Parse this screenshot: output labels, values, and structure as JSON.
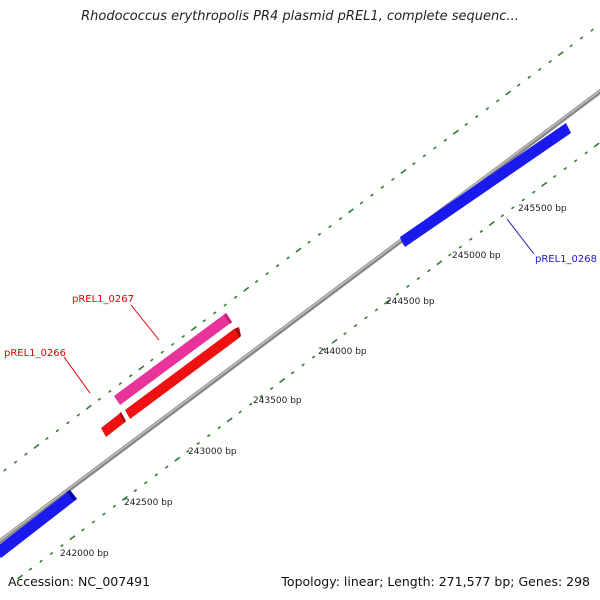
{
  "title": "Rhodococcus erythropolis PR4 plasmid pREL1, complete sequenc...",
  "footer": {
    "accession": "Accession: NC_007491",
    "summary": "Topology: linear; Length: 271,577 bp; Genes: 298"
  },
  "colors": {
    "backbone": "#888888",
    "tick": "#2e7d32",
    "forward_gene": "#e8339a",
    "forward_gene_edge": "#c71c79",
    "reverse_gene_red": "#ee1111",
    "reverse_gene_red_edge": "#b30000",
    "gene_blue": "#1a1aee",
    "gene_blue_edge": "#0000aa",
    "label_red": "#e00000",
    "label_blue": "#1a1acc"
  },
  "ticks": [
    {
      "label": "242000 bp"
    },
    {
      "label": "242500 bp"
    },
    {
      "label": "243000 bp"
    },
    {
      "label": "243500 bp"
    },
    {
      "label": "244000 bp"
    },
    {
      "label": "244500 bp"
    },
    {
      "label": "245000 bp"
    },
    {
      "label": "245500 bp"
    }
  ],
  "genes": [
    {
      "name": "pREL1_0266"
    },
    {
      "name": "pREL1_0267"
    },
    {
      "name": "pREL1_0268"
    }
  ]
}
